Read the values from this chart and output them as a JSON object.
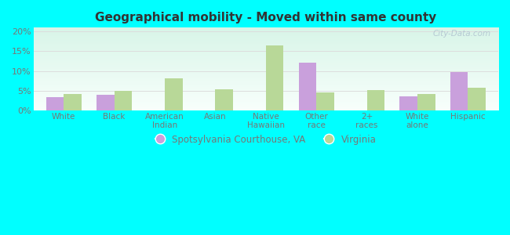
{
  "title": "Geographical mobility - Moved within same county",
  "categories": [
    "White",
    "Black",
    "American\nIndian",
    "Asian",
    "Native\nHawaiian",
    "Other\nrace",
    "2+\nraces",
    "White\nalone",
    "Hispanic"
  ],
  "spotsylvania": [
    3.3,
    4.0,
    0.0,
    0.0,
    0.0,
    12.2,
    0.0,
    3.5,
    9.8
  ],
  "virginia": [
    4.2,
    5.0,
    8.1,
    5.3,
    16.5,
    4.5,
    5.2,
    4.1,
    5.8
  ],
  "color_spots": "#c9a0dc",
  "color_virginia": "#b8d898",
  "bar_width": 0.35,
  "ylim": [
    0,
    21
  ],
  "yticks": [
    0,
    5,
    10,
    15,
    20
  ],
  "ytick_labels": [
    "0%",
    "5%",
    "10%",
    "15%",
    "20%"
  ],
  "fig_bg_color": "#00ffff",
  "plot_bg_top": "#d8f5e8",
  "plot_bg_bottom": "#f8fffc",
  "legend_spots": "Spotsylvania Courthouse, VA",
  "legend_virginia": "Virginia",
  "watermark": "City-Data.com",
  "title_color": "#333333",
  "tick_color": "#777777",
  "grid_color": "#dddddd"
}
